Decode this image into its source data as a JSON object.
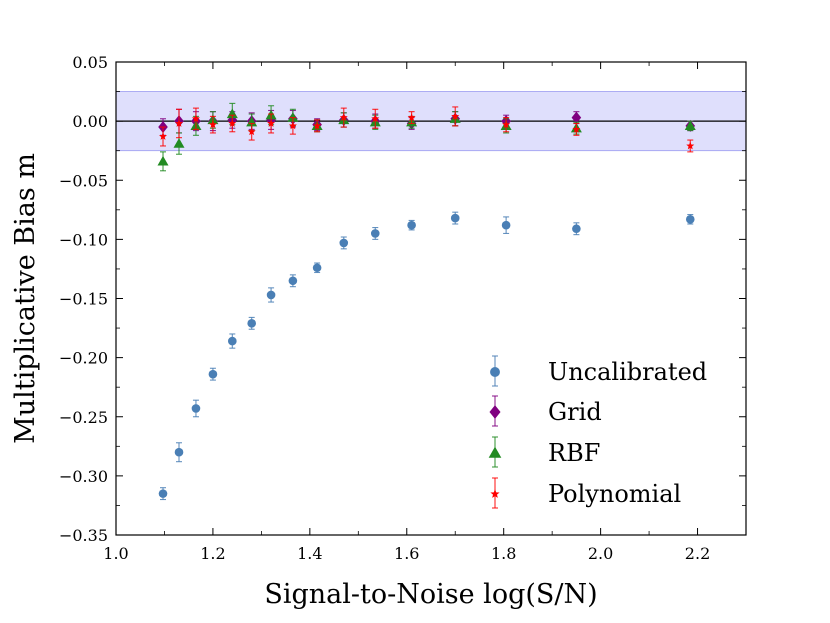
{
  "chart_data": {
    "type": "scatter",
    "title": "",
    "xlabel": "Signal-to-Noise log(S/N)",
    "ylabel": "Multiplicative Bias m",
    "xlim": [
      1.0,
      2.3
    ],
    "ylim": [
      -0.35,
      0.05
    ],
    "xticks": [
      1.0,
      1.2,
      1.4,
      1.6,
      1.8,
      2.0,
      2.2
    ],
    "xtick_labels": [
      "1.0",
      "1.2",
      "1.4",
      "1.6",
      "1.8",
      "2.0",
      "2.2"
    ],
    "yticks": [
      0.05,
      0.0,
      -0.05,
      -0.1,
      -0.15,
      -0.2,
      -0.25,
      -0.3,
      -0.35
    ],
    "ytick_labels": [
      "0.05",
      "0.00",
      "−0.05",
      "−0.10",
      "−0.15",
      "−0.20",
      "−0.25",
      "−0.30",
      "−0.35"
    ],
    "band": {
      "ymin": -0.025,
      "ymax": 0.025,
      "color": "#b8b8f8"
    },
    "hline": 0.0,
    "legend_position": "lower-right",
    "series": [
      {
        "name": "Uncalibrated",
        "marker": "circle",
        "color": "#4a7fb5",
        "x": [
          1.097,
          1.13,
          1.165,
          1.2,
          1.24,
          1.28,
          1.32,
          1.365,
          1.415,
          1.47,
          1.535,
          1.61,
          1.7,
          1.805,
          1.95,
          2.185
        ],
        "y": [
          -0.315,
          -0.28,
          -0.243,
          -0.214,
          -0.186,
          -0.171,
          -0.147,
          -0.135,
          -0.124,
          -0.103,
          -0.095,
          -0.088,
          -0.082,
          -0.088,
          -0.091,
          -0.083
        ],
        "err": [
          0.005,
          0.008,
          0.007,
          0.005,
          0.006,
          0.005,
          0.006,
          0.005,
          0.004,
          0.005,
          0.005,
          0.004,
          0.005,
          0.007,
          0.005,
          0.004
        ]
      },
      {
        "name": "Grid",
        "marker": "diamond",
        "color": "#800080",
        "x": [
          1.097,
          1.13,
          1.165,
          1.2,
          1.24,
          1.28,
          1.32,
          1.365,
          1.415,
          1.47,
          1.535,
          1.61,
          1.7,
          1.805,
          1.95,
          2.185
        ],
        "y": [
          -0.005,
          0.0,
          0.0,
          0.0,
          0.001,
          0.0,
          0.001,
          0.002,
          -0.003,
          0.001,
          0.0,
          -0.002,
          0.002,
          0.0,
          0.003,
          -0.004
        ],
        "err": [
          0.007,
          0.01,
          0.008,
          0.008,
          0.007,
          0.007,
          0.008,
          0.007,
          0.005,
          0.006,
          0.006,
          0.005,
          0.006,
          0.005,
          0.005,
          0.004
        ]
      },
      {
        "name": "RBF",
        "marker": "triangle",
        "color": "#228b22",
        "x": [
          1.097,
          1.13,
          1.165,
          1.2,
          1.24,
          1.28,
          1.32,
          1.365,
          1.415,
          1.47,
          1.535,
          1.61,
          1.7,
          1.805,
          1.95,
          2.185
        ],
        "y": [
          -0.034,
          -0.019,
          -0.004,
          0.001,
          0.006,
          -0.001,
          0.005,
          0.003,
          -0.004,
          0.001,
          -0.001,
          -0.001,
          0.002,
          -0.004,
          -0.006,
          -0.004
        ],
        "err": [
          0.008,
          0.009,
          0.008,
          0.007,
          0.009,
          0.007,
          0.008,
          0.007,
          0.005,
          0.006,
          0.006,
          0.005,
          0.006,
          0.006,
          0.005,
          0.004
        ]
      },
      {
        "name": "Polynomial",
        "marker": "star",
        "color": "#ff0000",
        "x": [
          1.097,
          1.13,
          1.165,
          1.2,
          1.24,
          1.28,
          1.32,
          1.365,
          1.415,
          1.47,
          1.535,
          1.61,
          1.7,
          1.805,
          1.95,
          2.185
        ],
        "y": [
          -0.013,
          -0.002,
          0.002,
          -0.003,
          -0.002,
          -0.009,
          -0.002,
          -0.004,
          -0.004,
          0.003,
          0.002,
          0.003,
          0.004,
          -0.003,
          -0.007,
          -0.021
        ],
        "err": [
          0.008,
          0.012,
          0.009,
          0.007,
          0.007,
          0.007,
          0.008,
          0.007,
          0.005,
          0.008,
          0.008,
          0.005,
          0.008,
          0.006,
          0.005,
          0.005
        ]
      }
    ]
  }
}
